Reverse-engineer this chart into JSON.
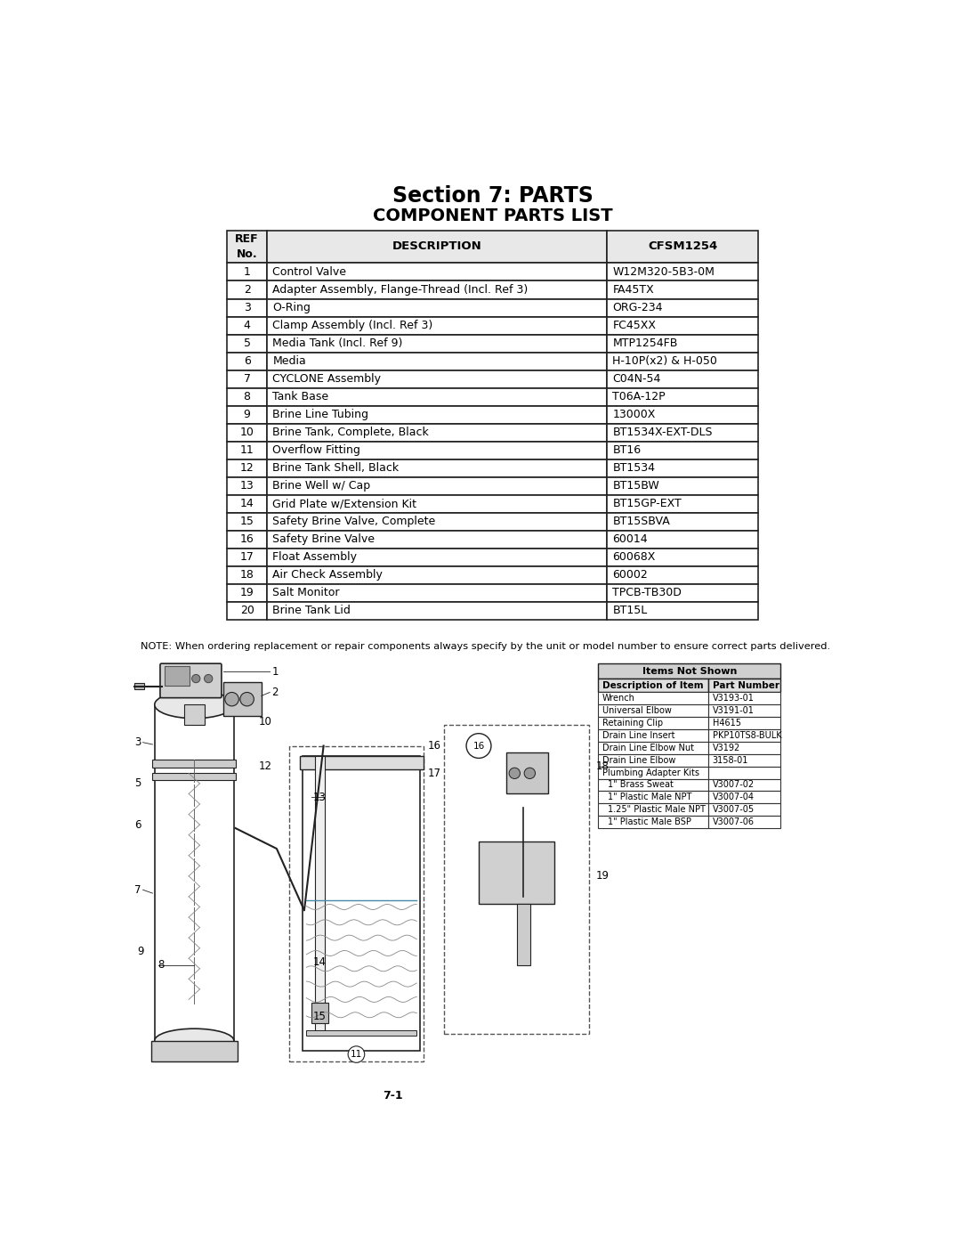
{
  "title_line1": "Section 7: PARTS",
  "title_line2": "COMPONENT PARTS LIST",
  "rows": [
    [
      "1",
      "Control Valve",
      "W12M320-5B3-0M"
    ],
    [
      "2",
      "Adapter Assembly, Flange-Thread (Incl. Ref 3)",
      "FA45TX"
    ],
    [
      "3",
      "O-Ring",
      "ORG-234"
    ],
    [
      "4",
      "Clamp Assembly (Incl. Ref 3)",
      "FC45XX"
    ],
    [
      "5",
      "Media Tank (Incl. Ref 9)",
      "MTP1254FB"
    ],
    [
      "6",
      "Media",
      "H-10P(x2) & H-050"
    ],
    [
      "7",
      "CYCLONE Assembly",
      "C04N-54"
    ],
    [
      "8",
      "Tank Base",
      "T06A-12P"
    ],
    [
      "9",
      "Brine Line Tubing",
      "13000X"
    ],
    [
      "10",
      "Brine Tank, Complete, Black",
      "BT1534X-EXT-DLS"
    ],
    [
      "11",
      "Overflow Fitting",
      "BT16"
    ],
    [
      "12",
      "Brine Tank Shell, Black",
      "BT1534"
    ],
    [
      "13",
      "Brine Well w/ Cap",
      "BT15BW"
    ],
    [
      "14",
      "Grid Plate w/Extension Kit",
      "BT15GP-EXT"
    ],
    [
      "15",
      "Safety Brine Valve, Complete",
      "BT15SBVA"
    ],
    [
      "16",
      "Safety Brine Valve",
      "60014"
    ],
    [
      "17",
      "Float Assembly",
      "60068X"
    ],
    [
      "18",
      "Air Check Assembly",
      "60002"
    ],
    [
      "19",
      "Salt Monitor",
      "TPCB-TB30D"
    ],
    [
      "20",
      "Brine Tank Lid",
      "BT15L"
    ]
  ],
  "note_text": "NOTE: When ordering replacement or repair components always specify by the unit or model number to ensure correct parts delivered.",
  "items_not_shown_header": "Items Not Shown",
  "items_not_shown_subheader": [
    "Description of Item",
    "Part Number"
  ],
  "items_not_shown": [
    [
      "Wrench",
      "V3193-01"
    ],
    [
      "Universal Elbow",
      "V3191-01"
    ],
    [
      "Retaining Clip",
      "H4615"
    ],
    [
      "Drain Line Insert",
      "PKP10TS8-BULK"
    ],
    [
      "Drain Line Elbow Nut",
      "V3192"
    ],
    [
      "Drain Line Elbow",
      "3158-01"
    ],
    [
      "Plumbing Adapter Kits",
      ""
    ],
    [
      "1\" Brass Sweat",
      "V3007-02"
    ],
    [
      "1\" Plastic Male NPT",
      "V3007-04"
    ],
    [
      "1.25\" Plastic Male NPT",
      "V3007-05"
    ],
    [
      "1\" Plastic Male BSP",
      "V3007-06"
    ]
  ],
  "page_number": "7-1",
  "bg_color": "#ffffff"
}
